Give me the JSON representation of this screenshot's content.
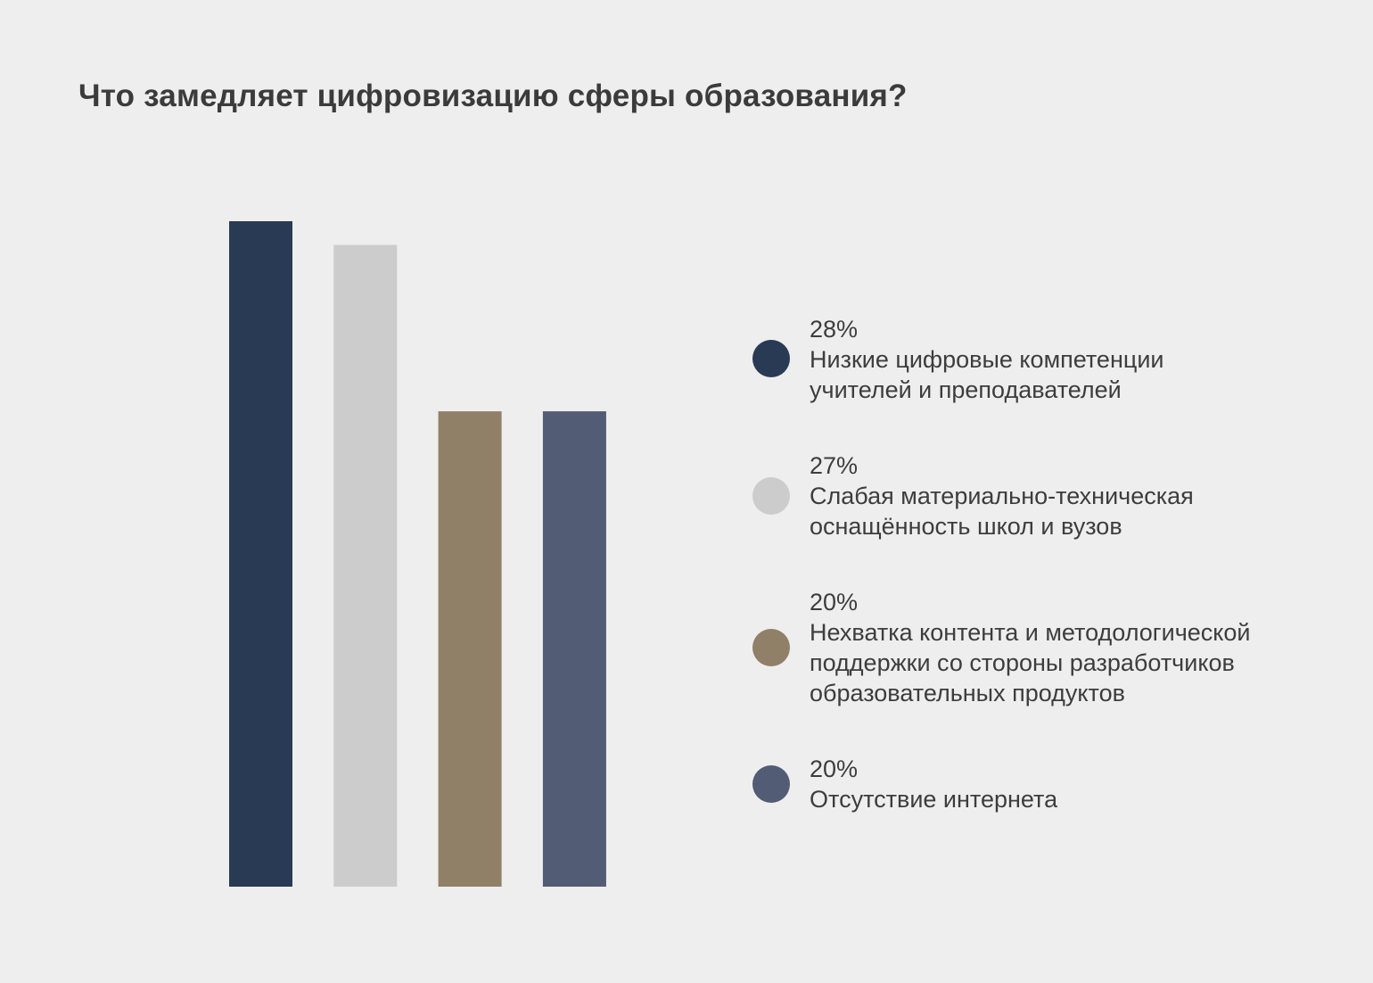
{
  "title": "Что замедляет цифровизацию сферы образования?",
  "chart_data": {
    "type": "bar",
    "title": "Что замедляет цифровизацию сферы образования?",
    "xlabel": "",
    "ylabel": "",
    "ylim": [
      0,
      28
    ],
    "grid": false,
    "legend_placement": "right",
    "categories": [
      "Низкие цифровые компетенции учителей и преподавателей",
      "Слабая материально-техническая оснащённость школ и вузов",
      "Нехватка контента и методологической поддержки со стороны разработчиков образовательных продуктов",
      "Отсутствие интернета"
    ],
    "values": [
      28,
      27,
      20,
      20
    ],
    "colors": [
      "#293a54",
      "#cccccc",
      "#918068",
      "#525c75"
    ]
  },
  "legend": [
    {
      "value_label": "28%",
      "lines": [
        "Низкие цифровые компетенции",
        "учителей и преподавателей"
      ],
      "color": "#293a54"
    },
    {
      "value_label": "27%",
      "lines": [
        "Слабая материально-техническая",
        "оснащённость школ и вузов"
      ],
      "color": "#cccccc"
    },
    {
      "value_label": "20%",
      "lines": [
        "Нехватка контента и методологической",
        "поддержки со стороны разработчиков",
        "образовательных продуктов"
      ],
      "color": "#918068"
    },
    {
      "value_label": "20%",
      "lines": [
        "Отсутствие интернета"
      ],
      "color": "#525c75"
    }
  ]
}
